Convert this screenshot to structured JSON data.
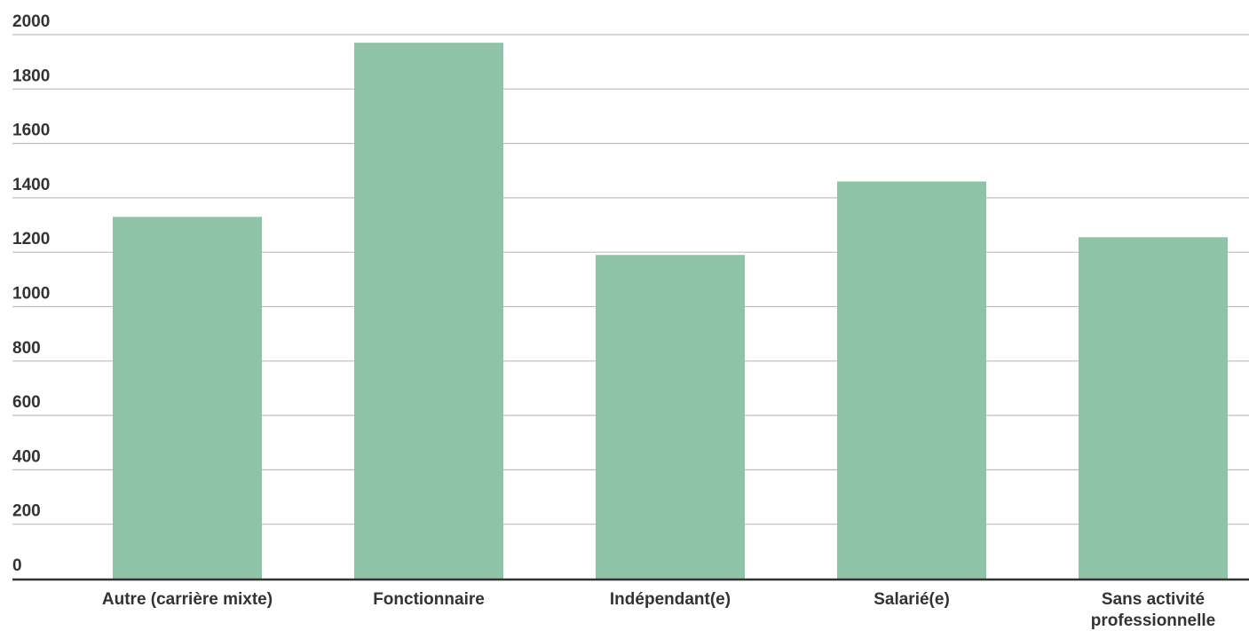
{
  "chart_data": {
    "type": "bar",
    "categories": [
      [
        "Autre (carrière mixte)"
      ],
      [
        "Fonctionnaire"
      ],
      [
        "Indépendant(e)"
      ],
      [
        "Salarié(e)"
      ],
      [
        "Sans activité",
        "professionnelle"
      ]
    ],
    "values": [
      1330,
      1970,
      1190,
      1460,
      1255
    ],
    "ylim": [
      0,
      2000
    ],
    "yticks": [
      0,
      200,
      400,
      600,
      800,
      1000,
      1200,
      1400,
      1600,
      1800,
      2000
    ],
    "grid": true,
    "legend": "none",
    "title": "",
    "xlabel": "",
    "ylabel": "",
    "colors": {
      "bar": "#8fc3a8",
      "grid": "#bdbdbd",
      "axis": "#333333",
      "text": "#333333"
    }
  }
}
